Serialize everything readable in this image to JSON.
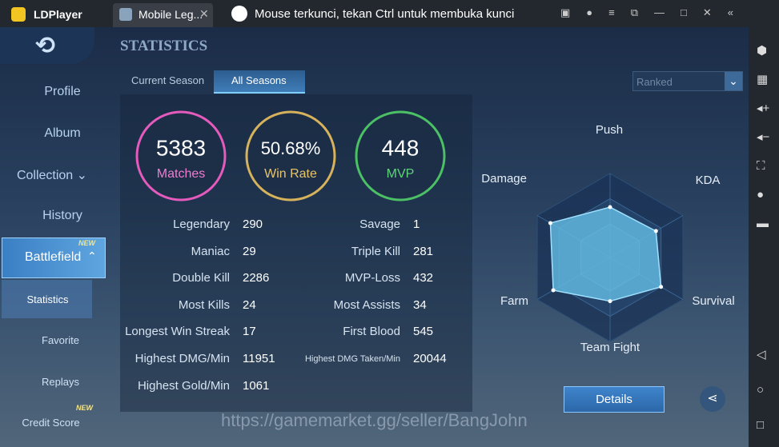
{
  "window": {
    "app_name": "LDPlayer",
    "tab": "Mobile Leg...",
    "notice": "Mouse terkunci, tekan Ctrl untuk membuka kunci"
  },
  "sidebar": {
    "items": [
      "Profile",
      "Album",
      "Collection",
      "History",
      "Battlefield",
      "Statistics",
      "Favorite",
      "Replays",
      "Credit Score"
    ],
    "badge": "NEW"
  },
  "header": {
    "title": "STATISTICS",
    "tabs": [
      "Current Season",
      "All Seasons"
    ],
    "dropdown": "Ranked"
  },
  "summary": [
    {
      "value": 5383,
      "label": "Matches"
    },
    {
      "value": "50.68%",
      "label": "Win Rate"
    },
    {
      "value": 448,
      "label": "MVP"
    }
  ],
  "stats_left": [
    [
      "Legendary",
      290
    ],
    [
      "Maniac",
      29
    ],
    [
      "Double Kill",
      2286
    ],
    [
      "Most Kills",
      24
    ],
    [
      "Longest Win Streak",
      17
    ],
    [
      "Highest DMG/Min",
      11951
    ],
    [
      "Highest Gold/Min",
      1061
    ]
  ],
  "stats_right": [
    [
      "Savage",
      1
    ],
    [
      "Triple Kill",
      281
    ],
    [
      "MVP-Loss",
      432
    ],
    [
      "Most Assists",
      34
    ],
    [
      "First Blood",
      545
    ],
    [
      "Highest DMG Taken/Min",
      20044
    ]
  ],
  "radar": {
    "type": "radar",
    "axes": [
      "Push",
      "KDA",
      "Survival",
      "Team Fight",
      "Farm",
      "Damage"
    ],
    "values": [
      60,
      63,
      70,
      52,
      78,
      82
    ],
    "rlim": [
      0,
      100
    ]
  },
  "button": "Details",
  "watermark": "https://gamemarket.gg/seller/BangJohn"
}
